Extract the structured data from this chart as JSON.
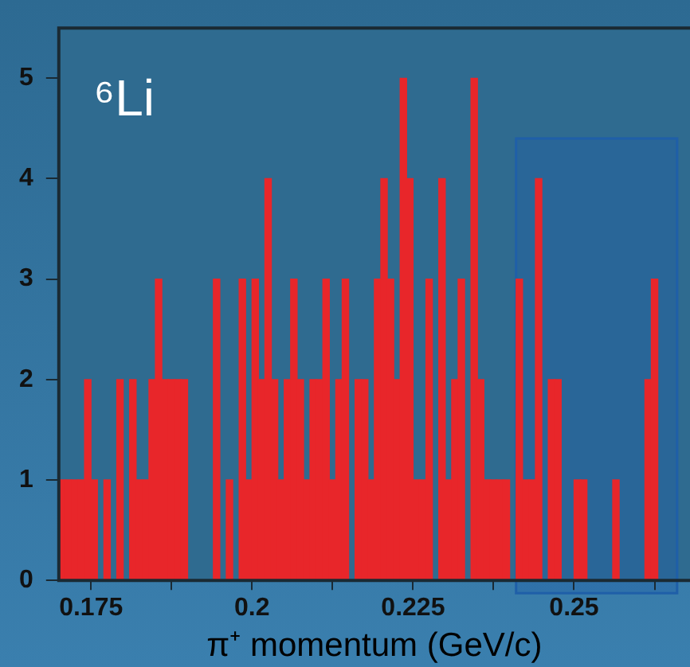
{
  "chart_data": {
    "type": "histogram",
    "xlabel": "π⁺ momentum (GeV/c)",
    "annotations": [
      "⁶Li"
    ],
    "bins": [
      0.17,
      0.171,
      0.172,
      0.173,
      0.174,
      0.175,
      0.176,
      0.177,
      0.178,
      0.179,
      0.18,
      0.181,
      0.182,
      0.183,
      0.184,
      0.185,
      0.186,
      0.187,
      0.188,
      0.189,
      0.19,
      0.191,
      0.192,
      0.193,
      0.194,
      0.195,
      0.196,
      0.197,
      0.198,
      0.199,
      0.2,
      0.201,
      0.202,
      0.203,
      0.204,
      0.205,
      0.206,
      0.207,
      0.208,
      0.209,
      0.21,
      0.211,
      0.212,
      0.213,
      0.214,
      0.215,
      0.216,
      0.217,
      0.218,
      0.219,
      0.22,
      0.221,
      0.222,
      0.223,
      0.224,
      0.225,
      0.226,
      0.227,
      0.228,
      0.229,
      0.23,
      0.231,
      0.232,
      0.233,
      0.234,
      0.235,
      0.236,
      0.237,
      0.238,
      0.239,
      0.24,
      0.241,
      0.242,
      0.243,
      0.244,
      0.245,
      0.246,
      0.247,
      0.248,
      0.249,
      0.25,
      0.251,
      0.252,
      0.253,
      0.254,
      0.255,
      0.256,
      0.257,
      0.258,
      0.259,
      0.26,
      0.261,
      0.262,
      0.263,
      0.264,
      0.265,
      0.266,
      0.267,
      0.268
    ],
    "values": [
      1,
      1,
      1,
      1,
      2,
      1,
      0,
      1,
      0,
      2,
      0,
      2,
      1,
      1,
      2,
      3,
      2,
      2,
      2,
      2,
      0,
      0,
      0,
      0,
      3,
      0,
      1,
      0,
      3,
      1,
      3,
      2,
      4,
      2,
      1,
      2,
      3,
      2,
      1,
      2,
      2,
      3,
      1,
      2,
      3,
      0,
      2,
      2,
      1,
      3,
      4,
      3,
      2,
      5,
      4,
      1,
      1,
      3,
      0,
      4,
      1,
      2,
      3,
      0,
      5,
      2,
      1,
      1,
      1,
      1,
      0,
      3,
      1,
      1,
      4,
      0,
      2,
      2,
      0,
      0,
      1,
      1,
      0,
      0,
      0,
      0,
      1,
      0,
      0,
      0,
      0,
      2,
      3,
      0,
      0,
      0,
      0,
      0
    ],
    "color": "#e8262a",
    "xlim": [
      0.17,
      0.268
    ],
    "ylim": [
      0,
      5.5
    ],
    "xticks": [
      0.175,
      {
        "value": 0.1875,
        "label": null
      },
      0.2,
      {
        "value": 0.2125,
        "label": null
      },
      0.225,
      {
        "value": 0.2375,
        "label": null
      },
      0.25,
      {
        "value": 0.2625,
        "label": null
      }
    ],
    "yticks": [
      0,
      1,
      2,
      3,
      4,
      5
    ],
    "bands": [
      {
        "axis": "x",
        "from": 0.241,
        "to": 0.266,
        "color": "#1f5fa8"
      }
    ],
    "grid": false,
    "legend": false
  }
}
